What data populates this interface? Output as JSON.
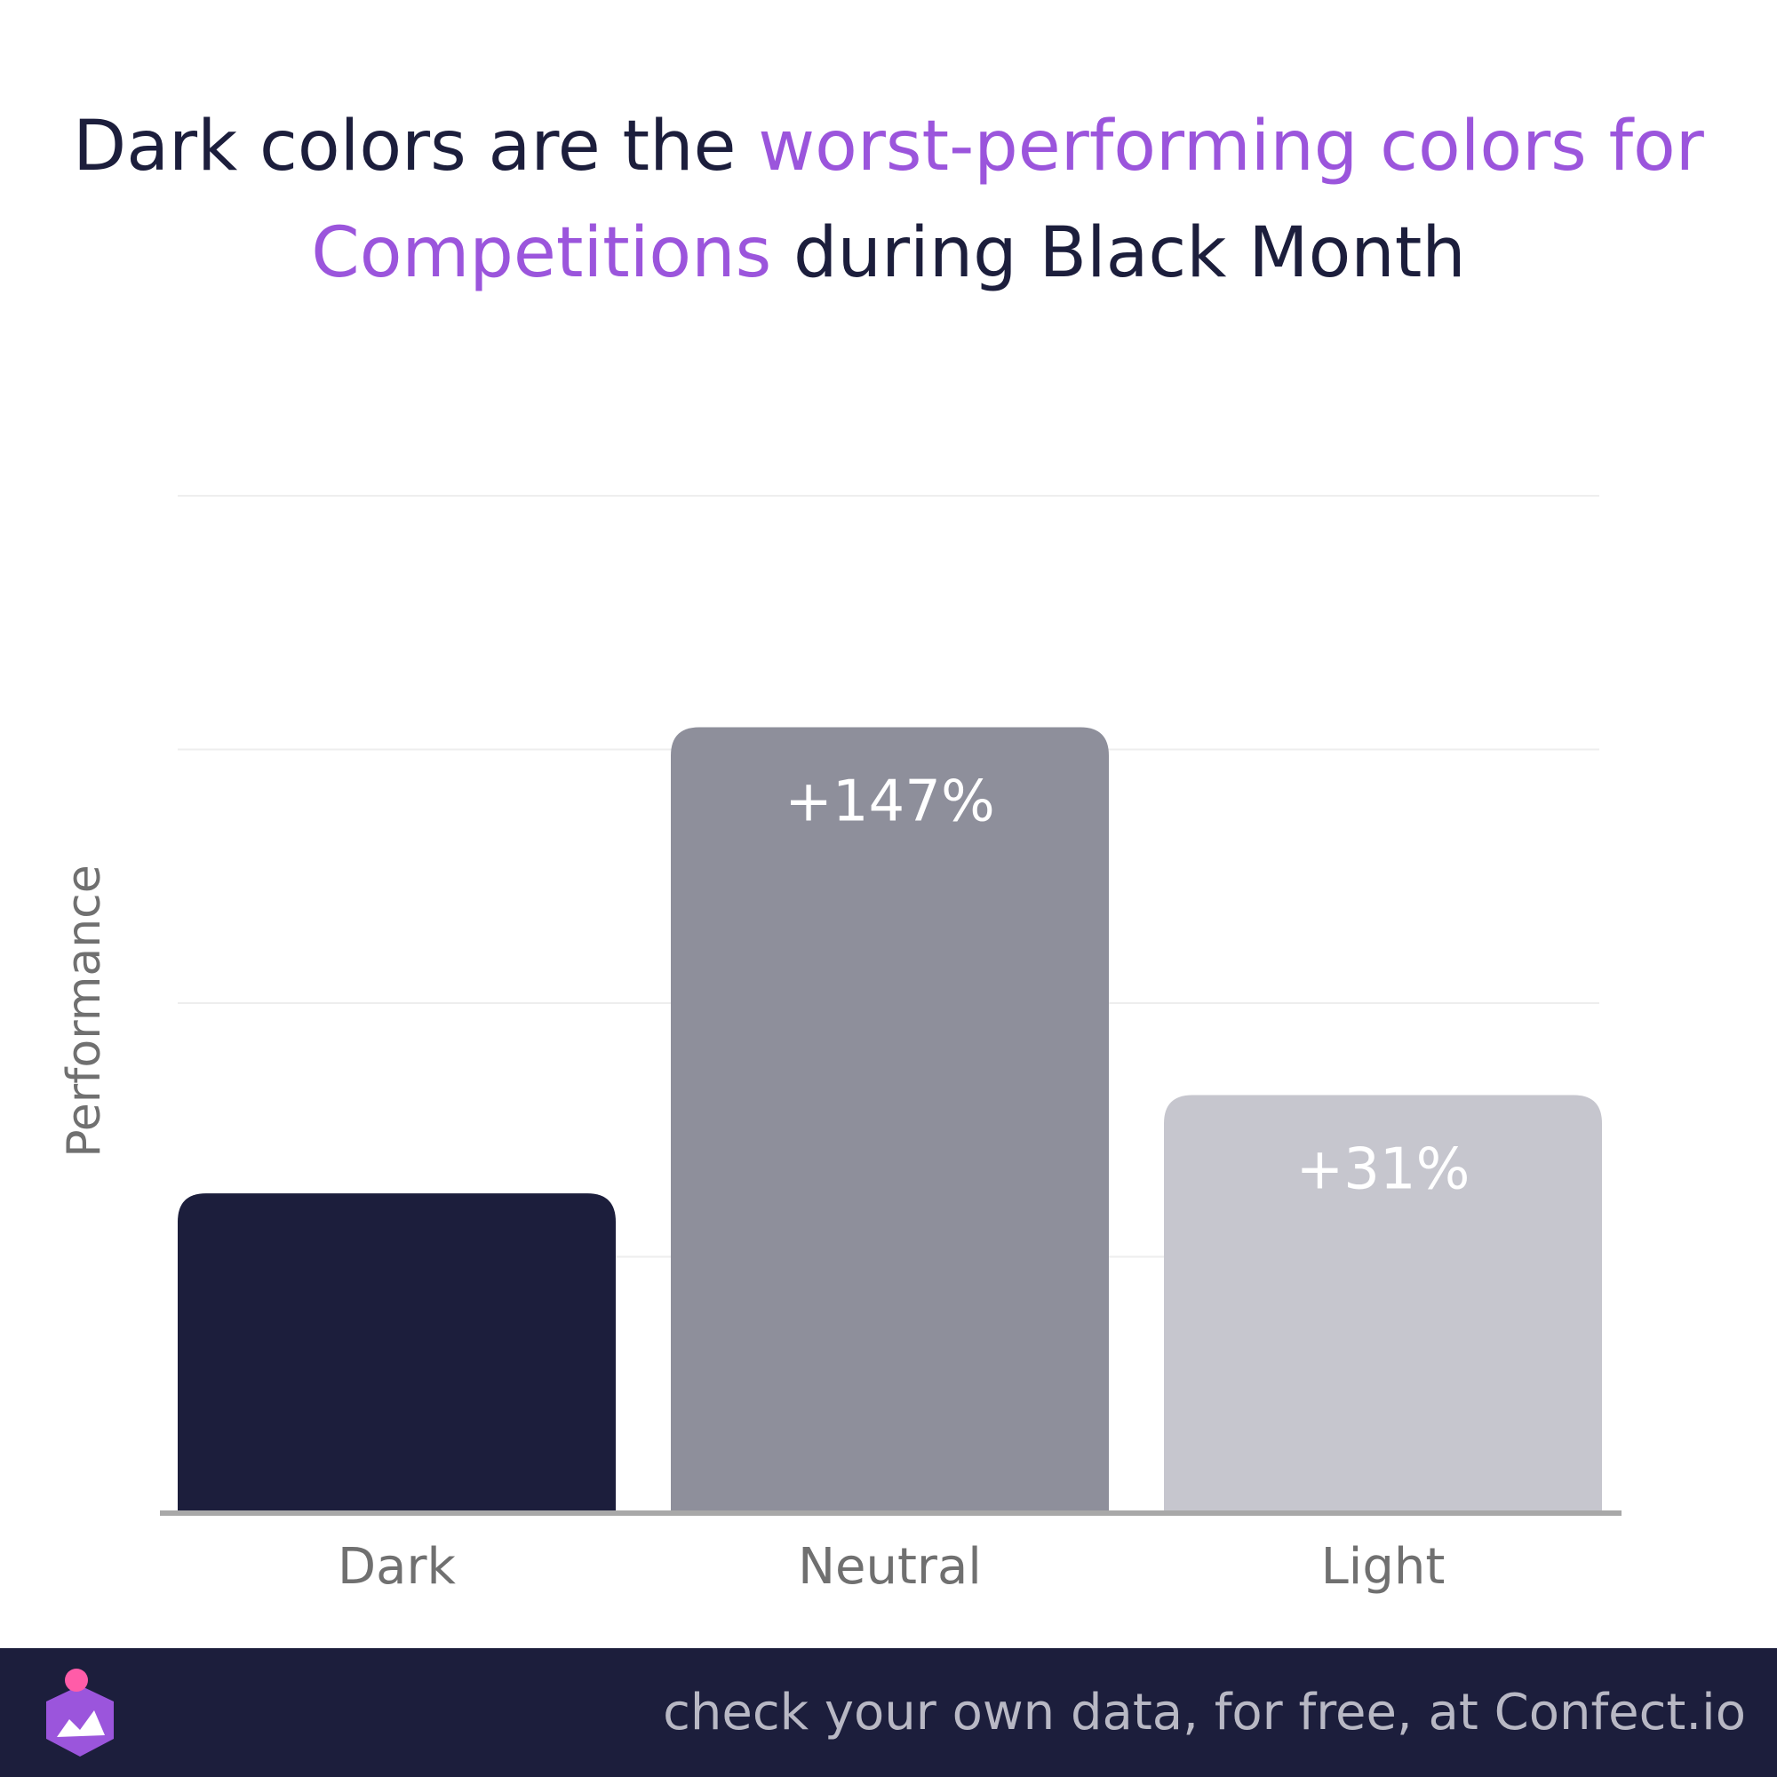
{
  "title": {
    "part1": "Dark colors are the ",
    "part2": "worst-performing colors for Competitions",
    "part3": " during Black Month"
  },
  "colors": {
    "title_text": "#1c1e3c",
    "title_accent": "#9b55dc",
    "footer_bg": "#1c1e3c",
    "footer_text": "#b8b8c4",
    "axis_text": "#707070",
    "gridline": "#eeeeee",
    "baseline": "#a8a8a8"
  },
  "chart_data": {
    "type": "bar",
    "categories": [
      "Dark",
      "Neutral",
      "Light"
    ],
    "values": [
      1.0,
      2.47,
      1.31
    ],
    "labels": [
      "",
      "+147%",
      "+31%"
    ],
    "bar_colors": [
      "#1c1e3c",
      "#8e8f9b",
      "#c6c6ce"
    ],
    "ylabel": "Performance",
    "ylim": [
      0,
      3.2
    ],
    "gridlines": [
      0.8,
      1.6,
      2.4,
      3.2
    ],
    "grid": true
  },
  "footer": {
    "text": "check your own data, for free, at Confect.io",
    "logo_icon": "confect-logo-icon"
  }
}
